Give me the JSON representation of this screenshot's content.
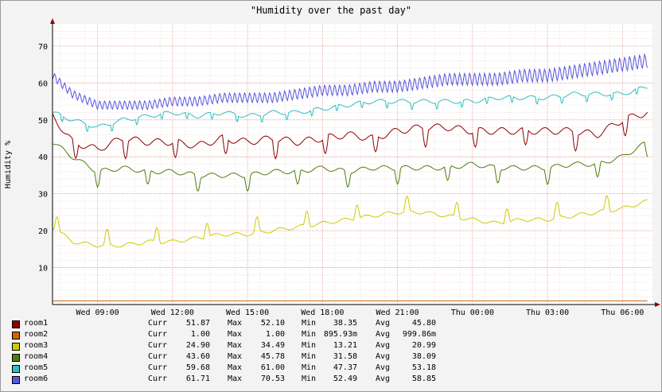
{
  "chart_data": {
    "type": "line",
    "title": "\"Humidity over the past day\"",
    "ylabel": "Humidity %",
    "xlabel": "",
    "ylim": [
      0,
      76
    ],
    "yticks": [
      "10",
      "20",
      "30",
      "40",
      "50",
      "60",
      "70"
    ],
    "ytick_values": [
      10,
      20,
      30,
      40,
      50,
      60,
      70
    ],
    "x_tick_labels": [
      "Wed 09:00",
      "Wed 12:00",
      "Wed 15:00",
      "Wed 18:00",
      "Wed 21:00",
      "Thu 00:00",
      "Thu 03:00",
      "Thu 06:00"
    ],
    "x_tick_hours": [
      9,
      12,
      15,
      18,
      21,
      24,
      27,
      30
    ],
    "x_range_hours": [
      7.2,
      31.2
    ],
    "grid": true,
    "legend_position": "bottom",
    "series": [
      {
        "name": "room1",
        "color": "#8b0000",
        "x": [
          7.2,
          8,
          9,
          10,
          11,
          12,
          13,
          14,
          15,
          16,
          17,
          18,
          19,
          20,
          21,
          22,
          23,
          24,
          25,
          26,
          27,
          28,
          29,
          30,
          31
        ],
        "values": [
          51,
          44,
          42,
          45,
          44,
          44,
          43,
          45,
          44,
          45,
          44,
          45,
          46,
          45,
          47,
          48,
          48,
          47,
          47,
          47,
          47,
          47,
          46,
          50,
          52
        ],
        "wave": [
          3,
          2,
          1.5
        ]
      },
      {
        "name": "room2",
        "color": "#cc6600",
        "x": [
          7.2,
          31
        ],
        "values": [
          1,
          1
        ],
        "wave": [
          0,
          1,
          1
        ]
      },
      {
        "name": "room3",
        "color": "#cccc00",
        "x": [
          7.2,
          8,
          9,
          10,
          11,
          12,
          13,
          14,
          15,
          16,
          17,
          18,
          19,
          20,
          21,
          22,
          23,
          24,
          25,
          26,
          27,
          28,
          29,
          30,
          31
        ],
        "values": [
          21,
          17,
          16,
          16,
          17,
          17,
          18,
          19,
          19,
          20,
          21,
          22,
          23,
          24,
          25,
          25,
          24,
          23,
          22,
          23,
          23,
          24,
          25,
          26,
          28
        ],
        "wave": [
          5,
          2,
          0.8
        ]
      },
      {
        "name": "room4",
        "color": "#4d7c0f",
        "x": [
          7.2,
          8,
          9,
          10,
          11,
          12,
          13,
          14,
          15,
          16,
          17,
          18,
          19,
          20,
          21,
          22,
          23,
          24,
          25,
          26,
          27,
          28,
          29,
          30,
          31
        ],
        "values": [
          44,
          40,
          36,
          37,
          36,
          36,
          35,
          35,
          35,
          36,
          36,
          37,
          36,
          37,
          37,
          37,
          37,
          38,
          37,
          37,
          37,
          38,
          38,
          40,
          44
        ],
        "wave": [
          4,
          2,
          1
        ]
      },
      {
        "name": "room5",
        "color": "#2ebfbf",
        "x": [
          7.2,
          8,
          9,
          10,
          11,
          12,
          13,
          14,
          15,
          16,
          17,
          18,
          19,
          20,
          21,
          22,
          23,
          24,
          25,
          26,
          27,
          28,
          29,
          30,
          31
        ],
        "values": [
          52,
          50,
          48,
          50,
          51,
          52,
          51,
          52,
          51,
          52,
          52,
          53,
          54,
          55,
          55,
          55,
          55,
          55,
          56,
          56,
          56,
          57,
          57,
          57,
          59
        ],
        "wave": [
          2,
          1,
          0.9
        ]
      },
      {
        "name": "room6",
        "color": "#5555dd",
        "x": [
          7.2,
          8,
          9,
          10,
          11,
          12,
          13,
          14,
          15,
          16,
          17,
          18,
          19,
          20,
          21,
          22,
          23,
          24,
          25,
          26,
          27,
          28,
          29,
          30,
          31
        ],
        "values": [
          62,
          57,
          54,
          54,
          54,
          55,
          55,
          56,
          56,
          56,
          57,
          58,
          58,
          59,
          59,
          60,
          61,
          61,
          61,
          62,
          62,
          63,
          64,
          65,
          66
        ],
        "wave": [
          3,
          0.2,
          1
        ]
      }
    ]
  },
  "legend": [
    {
      "name": "room1",
      "color": "#8b0000",
      "curr": "51.87",
      "max": "52.10",
      "min": "38.35",
      "avg": "45.80"
    },
    {
      "name": "room2",
      "color": "#cc6600",
      "curr": "1.00",
      "max": "1.00",
      "min": "895.93m",
      "avg": "999.86m"
    },
    {
      "name": "room3",
      "color": "#cccc00",
      "curr": "24.90",
      "max": "34.49",
      "min": "13.21",
      "avg": "20.99"
    },
    {
      "name": "room4",
      "color": "#4d7c0f",
      "curr": "43.60",
      "max": "45.78",
      "min": "31.58",
      "avg": "38.09"
    },
    {
      "name": "room5",
      "color": "#2ebfbf",
      "curr": "59.68",
      "max": "61.00",
      "min": "47.37",
      "avg": "53.18"
    },
    {
      "name": "room6",
      "color": "#5555dd",
      "curr": "61.71",
      "max": "70.53",
      "min": "52.49",
      "avg": "58.85"
    }
  ],
  "legend_labels": {
    "curr": "Curr",
    "max": "Max",
    "min": "Min",
    "avg": "Avg"
  }
}
